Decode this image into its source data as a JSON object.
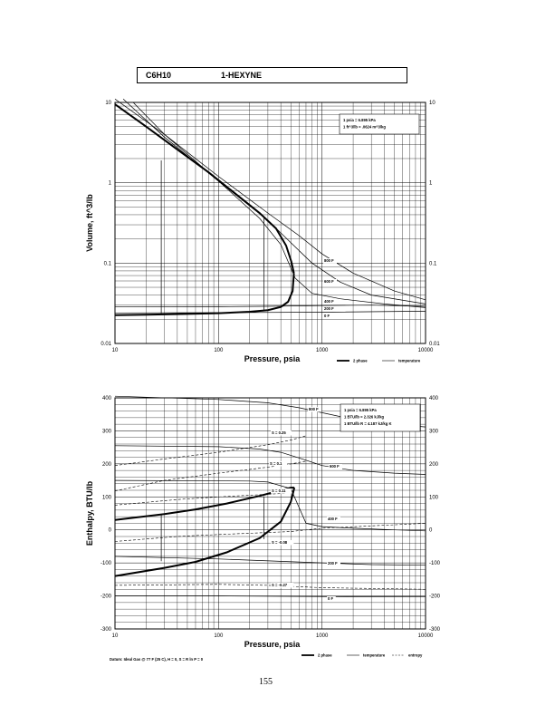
{
  "header": {
    "formula": "C6H10",
    "name": "1-HEXYNE"
  },
  "page_number": "155",
  "datum_note": "Datum: Ideal Gas @ 77 F (25 C), H = 0, S = R ln P = 0",
  "chart_data": [
    {
      "type": "line",
      "xscale": "log",
      "yscale": "log",
      "xlim": [
        10,
        10000
      ],
      "ylim": [
        0.01,
        10
      ],
      "xlabel": "Pressure, psia",
      "ylabel": "Volume, ft^3/lb",
      "x_ticks": [
        "10",
        "100",
        "1000",
        "10000"
      ],
      "y_ticks": [
        "0.01",
        "0.1",
        "1",
        "10"
      ],
      "y_ticks_right": [
        "0.01",
        "0.1",
        "1",
        "10"
      ],
      "notes": [
        "1 psia = 6.895 kPa",
        "1 ft^3/lb = .0624 m^3/kg"
      ],
      "legend": [
        "2 phase",
        "temperature"
      ],
      "series": [
        {
          "style": "2-phase",
          "x": [
            10,
            20,
            40,
            80,
            150,
            250,
            360,
            450,
            505,
            535
          ],
          "y": [
            9.5,
            5.0,
            2.6,
            1.35,
            0.71,
            0.42,
            0.27,
            0.165,
            0.105,
            0.075
          ]
        },
        {
          "style": "2-phase",
          "x": [
            10,
            20,
            50,
            100,
            200,
            300,
            400,
            470,
            520,
            535
          ],
          "y": [
            0.0225,
            0.0228,
            0.0233,
            0.0238,
            0.0248,
            0.026,
            0.0285,
            0.033,
            0.045,
            0.075
          ]
        },
        {
          "name": "800 F",
          "x": [
            10,
            30,
            100,
            300,
            600,
            1000,
            2000,
            5000,
            10000
          ],
          "y": [
            11,
            4.0,
            1.2,
            0.42,
            0.22,
            0.13,
            0.075,
            0.045,
            0.035
          ]
        },
        {
          "name": "600 F",
          "x": [
            12,
            30,
            100,
            300,
            500,
            800,
            1500,
            3000,
            10000
          ],
          "y": [
            11,
            3.7,
            1.05,
            0.34,
            0.18,
            0.1,
            0.058,
            0.04,
            0.031
          ]
        },
        {
          "name": "400 F",
          "x": [
            15,
            30,
            100,
            250,
            400,
            550,
            800,
            1500,
            4000,
            10000
          ],
          "y": [
            10,
            4.0,
            1.05,
            0.36,
            0.17,
            0.065,
            0.042,
            0.036,
            0.031,
            0.028
          ]
        },
        {
          "name": "200 F",
          "x": [
            10,
            100,
            300,
            600,
            1000,
            3000,
            10000
          ],
          "y": [
            0.0285,
            0.0287,
            0.029,
            0.0294,
            0.0297,
            0.03,
            0.029
          ]
        },
        {
          "name": "0 F",
          "x": [
            10,
            100,
            1000,
            10000
          ],
          "y": [
            0.024,
            0.0242,
            0.0245,
            0.0252
          ]
        },
        {
          "style": "temperature",
          "x": [
            28,
            28
          ],
          "y": [
            0.0235,
            1.9
          ]
        },
        {
          "style": "temperature",
          "x": [
            275,
            275
          ],
          "y": [
            0.0255,
            0.38
          ]
        }
      ],
      "labels": [
        "800 F",
        "600 F",
        "400 F",
        "200 F",
        "0 F"
      ]
    },
    {
      "type": "line",
      "xscale": "log",
      "xlim": [
        10,
        10000
      ],
      "ylim": [
        -300,
        400
      ],
      "xlabel": "Pressure, psia",
      "ylabel": "Enthalpy, BTU/lb",
      "x_ticks": [
        "10",
        "100",
        "1000",
        "10000"
      ],
      "y_ticks": [
        "-300",
        "-200",
        "-100",
        "0",
        "100",
        "200",
        "300",
        "400"
      ],
      "y_ticks_right": [
        "-300",
        "-200",
        "-100",
        "0",
        "100",
        "200",
        "300",
        "400"
      ],
      "notes": [
        "1 psia = 6.895 kPa",
        "1 BTU/lb = 2.326 kJ/kg",
        "1 BTU/lb R = 4.187 kJ/kg K"
      ],
      "legend": [
        "2 phase",
        "temperature",
        "entropy"
      ],
      "series": [
        {
          "style": "2-phase",
          "x": [
            10,
            30,
            60,
            120,
            250,
            400,
            500,
            540
          ],
          "y": [
            30,
            48,
            62,
            80,
            103,
            120,
            128,
            128
          ]
        },
        {
          "style": "2-phase",
          "x": [
            10,
            30,
            60,
            120,
            250,
            400,
            500,
            540
          ],
          "y": [
            -140,
            -115,
            -97,
            -68,
            -25,
            25,
            85,
            128
          ]
        },
        {
          "name": "800 F",
          "x": [
            10,
            100,
            300,
            600,
            1000,
            2000,
            5000,
            10000
          ],
          "y": [
            405,
            395,
            385,
            370,
            355,
            335,
            320,
            312
          ]
        },
        {
          "name": "600 F",
          "x": [
            10,
            100,
            250,
            400,
            600,
            1000,
            2000,
            5000,
            10000
          ],
          "y": [
            255,
            252,
            245,
            235,
            218,
            195,
            180,
            172,
            168
          ]
        },
        {
          "name": "400 F",
          "x": [
            10,
            200,
            300,
            500,
            700,
            1000,
            2000,
            5000,
            10000
          ],
          "y": [
            150,
            148,
            145,
            125,
            20,
            10,
            5,
            0,
            -3
          ]
        },
        {
          "name": "200 F",
          "x": [
            10,
            100,
            1000,
            3000,
            10000
          ],
          "y": [
            -80,
            -88,
            -100,
            -105,
            -107
          ]
        },
        {
          "name": "0 F",
          "x": [
            10,
            100,
            1000,
            10000
          ],
          "y": [
            -200,
            -200,
            -202,
            -203
          ]
        },
        {
          "style": "temperature",
          "x": [
            28,
            28
          ],
          "y": [
            -95,
            45
          ]
        },
        {
          "style": "temperature",
          "x": [
            275,
            275
          ],
          "y": [
            -28,
            102
          ]
        },
        {
          "name": "S = 0.25",
          "style": "entropy",
          "x": [
            10,
            30,
            100,
            300,
            500,
            700
          ],
          "y": [
            195,
            215,
            235,
            258,
            272,
            285
          ]
        },
        {
          "name": "S = 0.1",
          "style": "entropy",
          "x": [
            10,
            30,
            100,
            300,
            500,
            700
          ],
          "y": [
            118,
            150,
            172,
            190,
            200,
            208
          ]
        },
        {
          "name": "S = 0.11",
          "style": "entropy",
          "x": [
            10,
            40,
            100,
            300,
            500
          ],
          "y": [
            75,
            92,
            100,
            108,
            112
          ]
        },
        {
          "name": "S = -0.08",
          "style": "entropy",
          "x": [
            10,
            40,
            100,
            300,
            500,
            1000,
            10000
          ],
          "y": [
            -35,
            -20,
            -14,
            -8,
            -5,
            5,
            20
          ]
        },
        {
          "name": "S = -0.27",
          "style": "entropy",
          "x": [
            10,
            100,
            300,
            600,
            1000,
            10000
          ],
          "y": [
            -168,
            -165,
            -168,
            -172,
            -175,
            -180
          ]
        }
      ],
      "labels": [
        "800 F",
        "600 F",
        "400 F",
        "200 F",
        "0 F",
        "S = 0.25",
        "S = 0.1",
        "S = 0.11",
        "S = -0.08",
        "S = -0.27"
      ]
    }
  ]
}
